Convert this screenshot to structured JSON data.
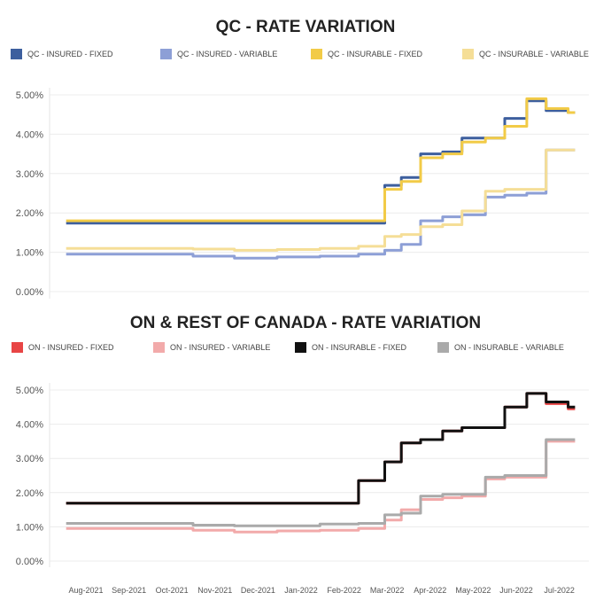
{
  "chart_data": [
    {
      "type": "line",
      "title": "QC - RATE VARIATION",
      "ylim": [
        0,
        5
      ],
      "y_ticks": [
        "0.00%",
        "1.00%",
        "2.00%",
        "3.00%",
        "4.00%",
        "5.00%"
      ],
      "grid": true,
      "legend_position": "top",
      "x": [
        "2021-08",
        "2021-09",
        "2021-10",
        "2021-11",
        "2021-12",
        "2022-01",
        "2022-02",
        "2022-03",
        "2022-03-20",
        "2022-04",
        "2022-04-15",
        "2022-05",
        "2022-05-15",
        "2022-06",
        "2022-06-15",
        "2022-07",
        "2022-07-15",
        "2022-07-31"
      ],
      "series": [
        {
          "name": "QC - INSURED - FIXED",
          "color": "#3d5f9e",
          "values": [
            1.74,
            1.74,
            1.74,
            1.74,
            1.74,
            1.74,
            1.74,
            1.74,
            2.7,
            2.9,
            3.5,
            3.55,
            3.9,
            3.9,
            4.4,
            4.85,
            4.6,
            4.55
          ]
        },
        {
          "name": "QC - INSURED - VARIABLE",
          "color": "#8d9fd6",
          "values": [
            0.95,
            0.95,
            0.95,
            0.9,
            0.85,
            0.88,
            0.9,
            0.95,
            1.05,
            1.2,
            1.8,
            1.9,
            1.95,
            2.4,
            2.45,
            2.5,
            3.6,
            3.6
          ]
        },
        {
          "name": "QC - INSURABLE - FIXED",
          "color": "#f2cb47",
          "values": [
            1.8,
            1.8,
            1.8,
            1.8,
            1.8,
            1.8,
            1.8,
            1.8,
            2.6,
            2.8,
            3.4,
            3.5,
            3.8,
            3.9,
            4.2,
            4.9,
            4.65,
            4.55
          ]
        },
        {
          "name": "QC - INSURABLE - VARIABLE",
          "color": "#f5de97",
          "values": [
            1.1,
            1.1,
            1.1,
            1.08,
            1.05,
            1.07,
            1.1,
            1.15,
            1.4,
            1.45,
            1.65,
            1.7,
            2.05,
            2.55,
            2.6,
            2.6,
            3.6,
            3.6
          ]
        }
      ]
    },
    {
      "type": "line",
      "title": "ON & REST OF CANADA - RATE VARIATION",
      "ylim": [
        0,
        5
      ],
      "y_ticks": [
        "0.00%",
        "1.00%",
        "2.00%",
        "3.00%",
        "4.00%",
        "5.00%"
      ],
      "x_ticks": [
        "Aug-2021",
        "Sep-2021",
        "Oct-2021",
        "Nov-2021",
        "Dec-2021",
        "Jan-2022",
        "Feb-2022",
        "Mar-2022",
        "Apr-2022",
        "May-2022",
        "Jun-2022",
        "Jul-2022"
      ],
      "grid": true,
      "legend_position": "top",
      "x": [
        "2021-08",
        "2021-09",
        "2021-10",
        "2021-11",
        "2021-12",
        "2022-01",
        "2022-02",
        "2022-03",
        "2022-03-20",
        "2022-04",
        "2022-04-15",
        "2022-05",
        "2022-05-15",
        "2022-06",
        "2022-06-15",
        "2022-07",
        "2022-07-15",
        "2022-07-31"
      ],
      "series": [
        {
          "name": "ON - INSURED - FIXED",
          "color": "#e84545",
          "values": [
            1.69,
            1.69,
            1.69,
            1.69,
            1.69,
            1.69,
            1.69,
            2.35,
            2.9,
            3.45,
            3.55,
            3.8,
            3.9,
            3.9,
            4.5,
            4.9,
            4.6,
            4.45
          ]
        },
        {
          "name": "ON - INSURED - VARIABLE",
          "color": "#f2aaaa",
          "values": [
            0.95,
            0.95,
            0.95,
            0.9,
            0.85,
            0.88,
            0.9,
            0.95,
            1.2,
            1.5,
            1.8,
            1.85,
            1.9,
            2.4,
            2.45,
            2.45,
            3.5,
            3.5
          ]
        },
        {
          "name": "ON - INSURABLE - FIXED",
          "color": "#111111",
          "values": [
            1.69,
            1.69,
            1.69,
            1.69,
            1.69,
            1.69,
            1.69,
            2.35,
            2.9,
            3.45,
            3.55,
            3.8,
            3.9,
            3.9,
            4.5,
            4.9,
            4.65,
            4.5
          ]
        },
        {
          "name": "ON - INSURABLE - VARIABLE",
          "color": "#aaaaaa",
          "values": [
            1.1,
            1.1,
            1.1,
            1.05,
            1.03,
            1.03,
            1.08,
            1.1,
            1.35,
            1.4,
            1.9,
            1.95,
            1.95,
            2.45,
            2.5,
            2.5,
            3.55,
            3.55
          ]
        }
      ]
    }
  ]
}
